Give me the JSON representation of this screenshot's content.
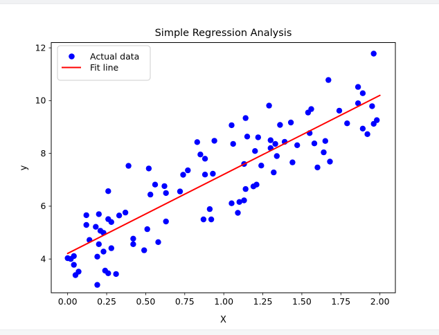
{
  "page": {
    "top_strip_color": "#f1f2f4",
    "bottom_strip_color": "#f5f6f7",
    "background": "#ffffff"
  },
  "chart_data": {
    "type": "scatter",
    "title": "Simple Regression Analysis",
    "xlabel": "X",
    "ylabel": "y",
    "xlim": [
      -0.105,
      2.099
    ],
    "ylim": [
      2.72,
      12.2
    ],
    "x_ticks": [
      0.0,
      0.25,
      0.5,
      0.75,
      1.0,
      1.25,
      1.5,
      1.75,
      2.0
    ],
    "x_tick_labels": [
      "0.00",
      "0.25",
      "0.50",
      "0.75",
      "1.00",
      "1.25",
      "1.50",
      "1.75",
      "2.00"
    ],
    "y_ticks": [
      4,
      6,
      8,
      10,
      12
    ],
    "y_tick_labels": [
      "4",
      "6",
      "8",
      "10",
      "12"
    ],
    "grid": false,
    "legend": {
      "position": "upper left",
      "entries": [
        {
          "label": "Actual data",
          "marker": "dot",
          "color": "#0000ff"
        },
        {
          "label": "Fit line",
          "marker": "line",
          "color": "#ff0000"
        }
      ]
    },
    "series": [
      {
        "name": "Actual data",
        "type": "scatter",
        "color": "#0000ff",
        "points": [
          [
            0.39,
            7.53
          ],
          [
            0.52,
            7.43
          ],
          [
            1.29,
            9.81
          ],
          [
            1.14,
            9.34
          ],
          [
            1.05,
            9.07
          ],
          [
            1.15,
            8.64
          ],
          [
            1.22,
            8.61
          ],
          [
            0.83,
            8.43
          ],
          [
            0.94,
            8.48
          ],
          [
            1.06,
            8.36
          ],
          [
            1.3,
            8.5
          ],
          [
            1.33,
            8.36
          ],
          [
            0.85,
            7.96
          ],
          [
            0.88,
            7.8
          ],
          [
            1.2,
            8.09
          ],
          [
            1.13,
            7.6
          ],
          [
            1.24,
            7.54
          ],
          [
            1.36,
            9.08
          ],
          [
            1.39,
            8.44
          ],
          [
            1.3,
            8.2
          ],
          [
            1.34,
            7.9
          ],
          [
            1.96,
            11.78
          ],
          [
            1.67,
            10.78
          ],
          [
            1.86,
            10.52
          ],
          [
            1.89,
            10.28
          ],
          [
            1.86,
            9.9
          ],
          [
            1.95,
            9.79
          ],
          [
            1.56,
            9.68
          ],
          [
            1.54,
            9.55
          ],
          [
            1.74,
            9.62
          ],
          [
            1.43,
            9.17
          ],
          [
            1.79,
            9.14
          ],
          [
            1.98,
            9.26
          ],
          [
            1.96,
            9.12
          ],
          [
            1.89,
            8.94
          ],
          [
            1.92,
            8.73
          ],
          [
            1.55,
            8.77
          ],
          [
            1.47,
            8.31
          ],
          [
            1.65,
            8.47
          ],
          [
            1.58,
            8.38
          ],
          [
            1.64,
            8.04
          ],
          [
            1.68,
            7.69
          ],
          [
            1.44,
            7.66
          ],
          [
            1.6,
            7.47
          ],
          [
            0.56,
            6.82
          ],
          [
            0.62,
            6.76
          ],
          [
            0.63,
            6.5
          ],
          [
            0.53,
            6.44
          ],
          [
            0.26,
            6.57
          ],
          [
            0.12,
            5.66
          ],
          [
            0.2,
            5.7
          ],
          [
            0.26,
            5.51
          ],
          [
            0.28,
            5.4
          ],
          [
            0.33,
            5.65
          ],
          [
            0.37,
            5.76
          ],
          [
            0.12,
            5.29
          ],
          [
            0.18,
            5.22
          ],
          [
            0.21,
            5.07
          ],
          [
            0.23,
            4.99
          ],
          [
            0.51,
            5.13
          ],
          [
            0.14,
            4.72
          ],
          [
            0.2,
            4.56
          ],
          [
            0.42,
            4.77
          ],
          [
            0.42,
            4.56
          ],
          [
            0.49,
            4.33
          ],
          [
            0.58,
            4.64
          ],
          [
            0.28,
            4.41
          ],
          [
            0.23,
            4.28
          ],
          [
            0.19,
            4.09
          ],
          [
            0.02,
            4.0
          ],
          [
            0.04,
            4.11
          ],
          [
            0.0,
            4.03
          ],
          [
            0.04,
            3.78
          ],
          [
            0.07,
            3.52
          ],
          [
            0.05,
            3.39
          ],
          [
            0.24,
            3.56
          ],
          [
            0.26,
            3.46
          ],
          [
            0.31,
            3.43
          ],
          [
            0.19,
            3.02
          ],
          [
            0.74,
            7.19
          ],
          [
            0.77,
            7.36
          ],
          [
            0.88,
            7.2
          ],
          [
            0.93,
            7.23
          ],
          [
            0.72,
            6.56
          ],
          [
            1.14,
            6.65
          ],
          [
            1.19,
            6.75
          ],
          [
            1.21,
            6.82
          ],
          [
            1.05,
            6.11
          ],
          [
            1.1,
            6.16
          ],
          [
            1.13,
            6.22
          ],
          [
            1.09,
            5.75
          ],
          [
            0.91,
            5.89
          ],
          [
            0.87,
            5.5
          ],
          [
            0.92,
            5.5
          ],
          [
            0.63,
            5.42
          ],
          [
            1.32,
            7.28
          ]
        ]
      },
      {
        "name": "Fit line",
        "type": "line",
        "color": "#ff0000",
        "points": [
          [
            0.0,
            4.21
          ],
          [
            2.0,
            10.2
          ]
        ]
      }
    ]
  }
}
